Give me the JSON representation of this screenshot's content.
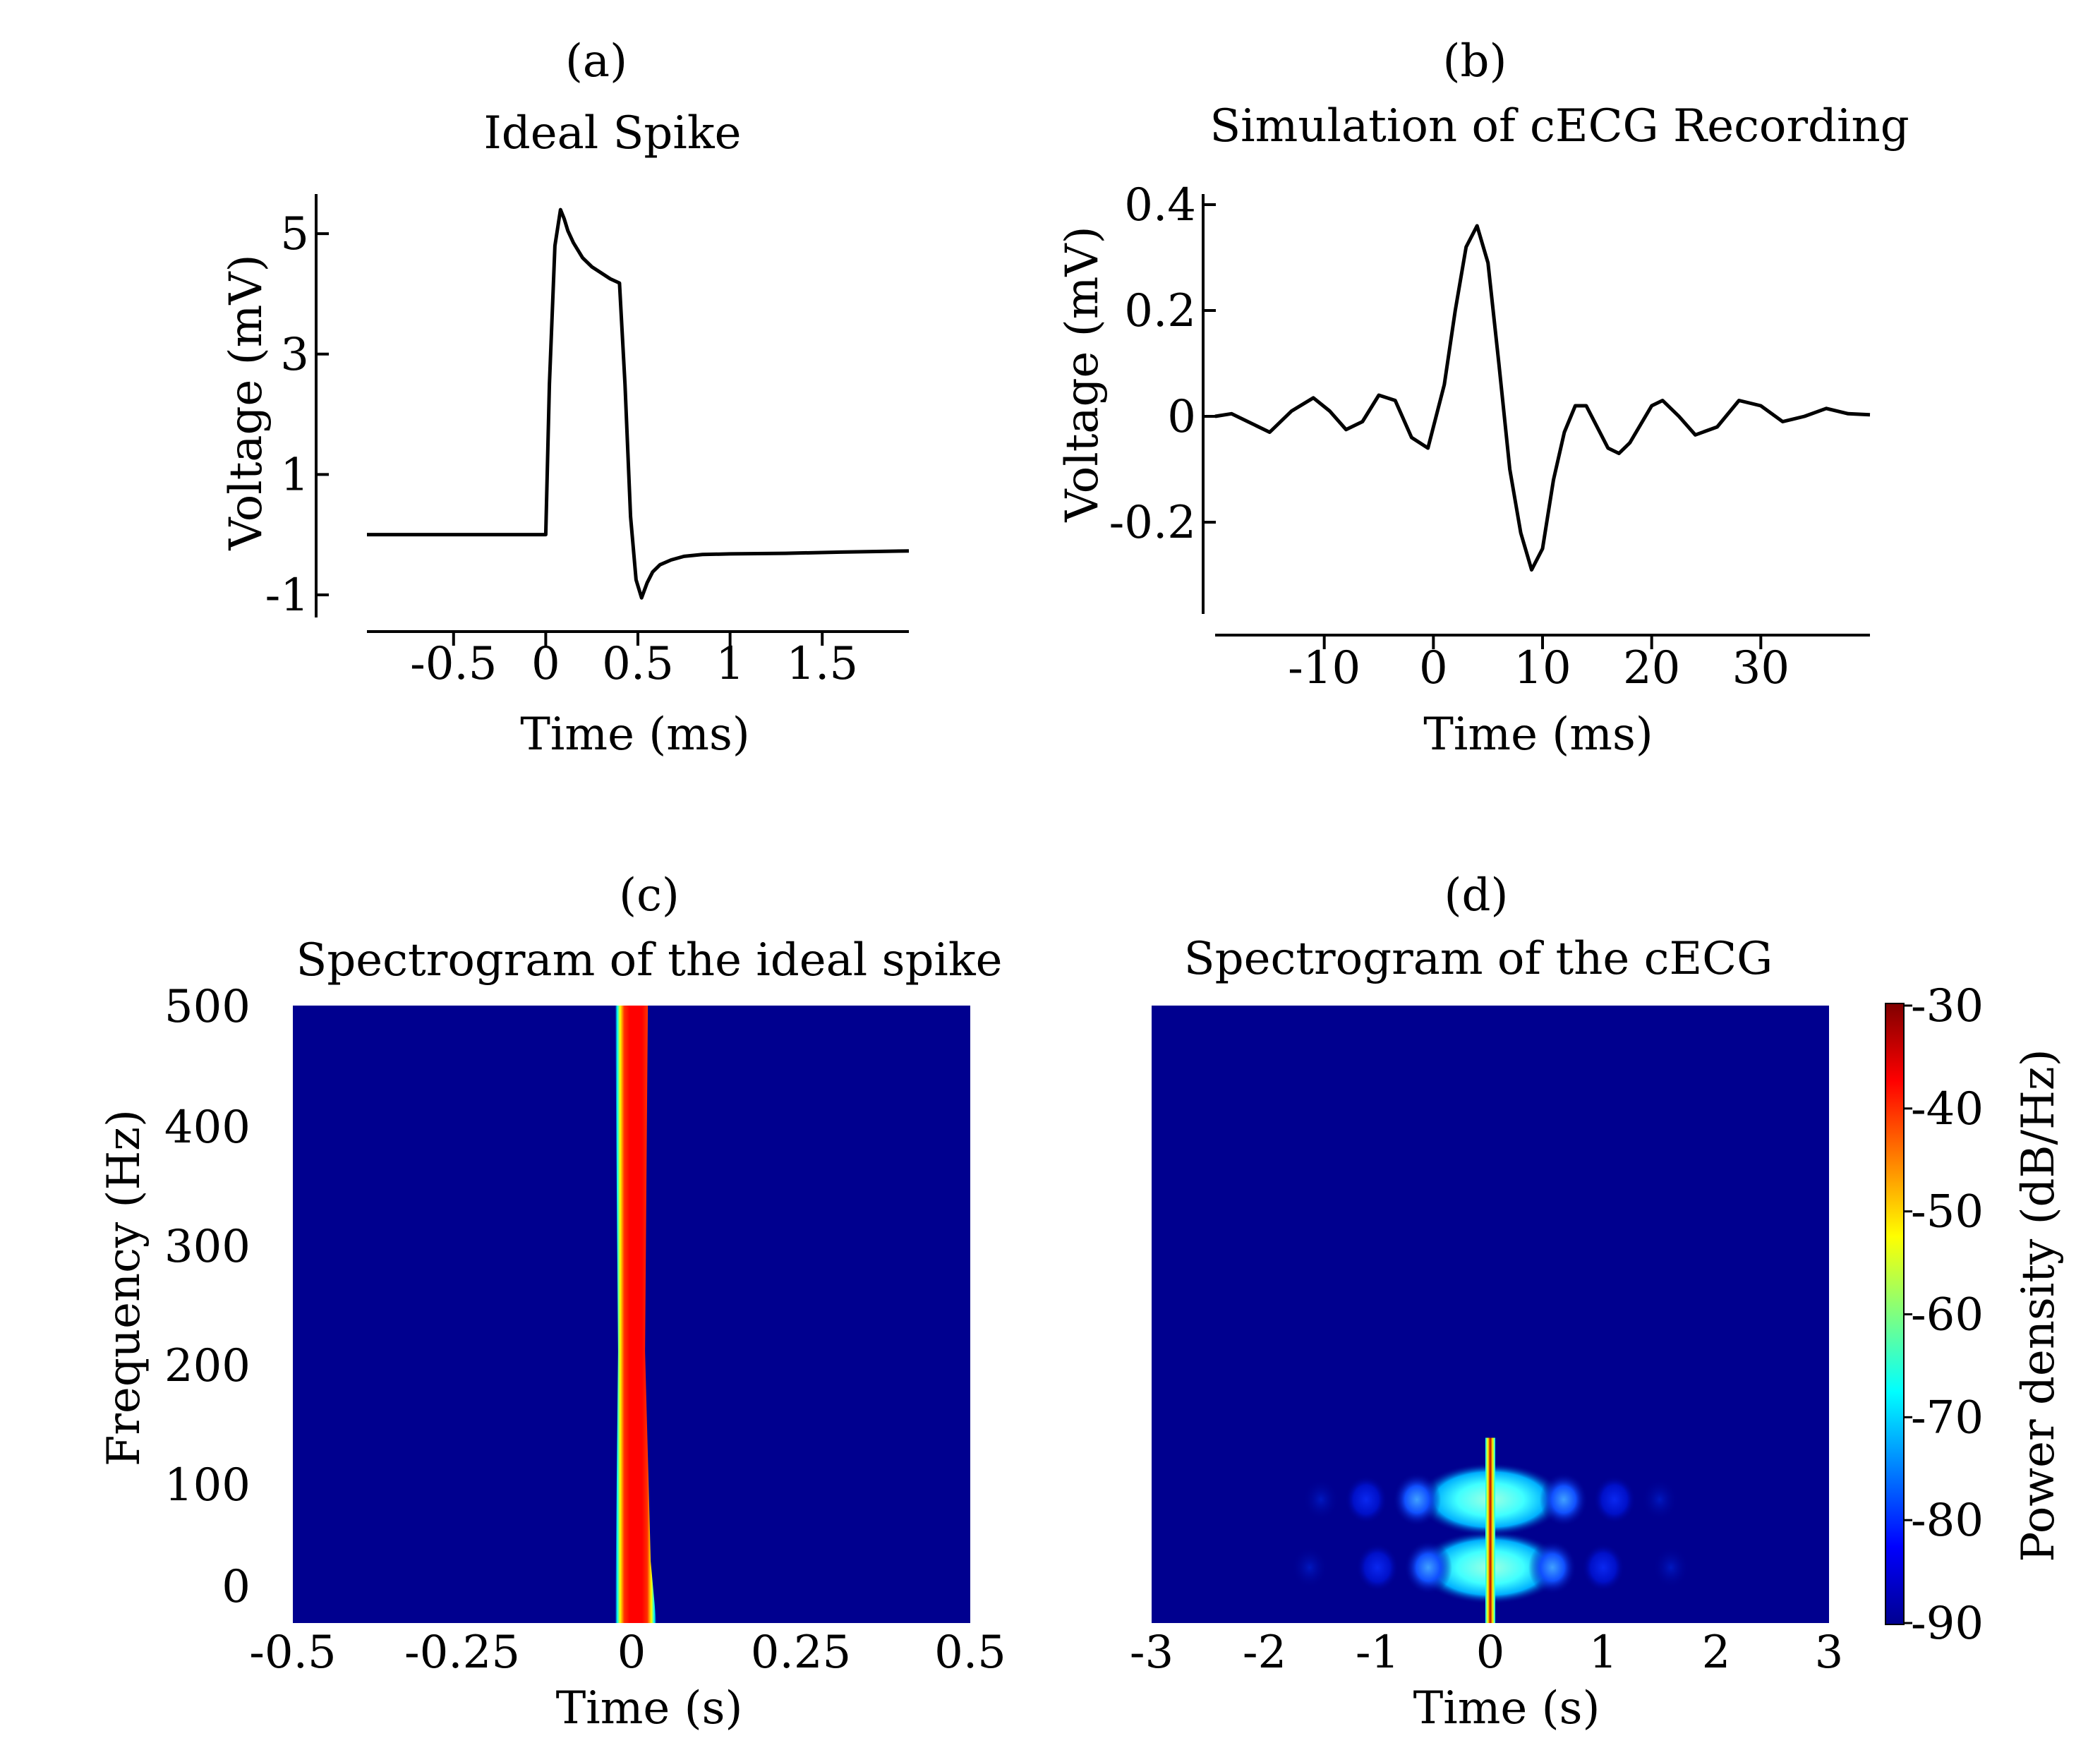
{
  "chart_data": [
    {
      "id": "a",
      "type": "line",
      "panel_label": "(a)",
      "title": "Ideal Spike",
      "xlabel": "Time (ms)",
      "ylabel": "Voltage (mV)",
      "xlim": [
        -0.97,
        1.97
      ],
      "ylim": [
        -1.2,
        5.6
      ],
      "xticks": [
        -0.5,
        0,
        0.5,
        1,
        1.5
      ],
      "xtick_labels": [
        "-0.5",
        "0",
        "0.5",
        "1",
        "1.5"
      ],
      "yticks": [
        -1,
        1,
        3,
        5
      ],
      "ytick_labels": [
        "-1",
        "1",
        "3",
        "5"
      ],
      "x": [
        -0.97,
        -0.6,
        -0.2,
        0.0,
        0.02,
        0.05,
        0.08,
        0.1,
        0.12,
        0.15,
        0.2,
        0.25,
        0.3,
        0.35,
        0.4,
        0.43,
        0.46,
        0.49,
        0.52,
        0.55,
        0.58,
        0.62,
        0.68,
        0.75,
        0.85,
        1.0,
        1.3,
        1.6,
        1.97
      ],
      "y": [
        0.0,
        0.0,
        0.0,
        0.0,
        2.5,
        4.8,
        5.4,
        5.25,
        5.05,
        4.85,
        4.6,
        4.45,
        4.35,
        4.25,
        4.18,
        2.5,
        0.3,
        -0.75,
        -1.05,
        -0.8,
        -0.62,
        -0.5,
        -0.42,
        -0.36,
        -0.33,
        -0.32,
        -0.31,
        -0.29,
        -0.27
      ]
    },
    {
      "id": "b",
      "type": "line",
      "panel_label": "(b)",
      "title": "Simulation of cECG Recording",
      "xlabel": "Time (ms)",
      "ylabel": "Voltage (mV)",
      "xlim": [
        -20,
        40
      ],
      "ylim": [
        -0.36,
        0.42
      ],
      "xticks": [
        -10,
        0,
        10,
        20,
        30
      ],
      "xtick_labels": [
        "-10",
        "0",
        "10",
        "20",
        "30"
      ],
      "yticks": [
        -0.2,
        0,
        0.2,
        0.4
      ],
      "ytick_labels": [
        "-0.2",
        "0",
        "0.2",
        "0.4"
      ],
      "x": [
        -20,
        -18.5,
        -17,
        -15,
        -13,
        -11,
        -9.5,
        -8,
        -6.5,
        -5,
        -3.5,
        -2,
        -0.5,
        1,
        2,
        3,
        4,
        5,
        6,
        7,
        8,
        9,
        10,
        11,
        12,
        13,
        14,
        16,
        17,
        18,
        20,
        21,
        22.5,
        24,
        26,
        28,
        30,
        32,
        34,
        36,
        38,
        40
      ],
      "y": [
        0.0,
        0.005,
        -0.01,
        -0.03,
        0.01,
        0.035,
        0.01,
        -0.025,
        -0.01,
        0.04,
        0.03,
        -0.04,
        -0.06,
        0.06,
        0.2,
        0.32,
        0.36,
        0.29,
        0.1,
        -0.1,
        -0.22,
        -0.29,
        -0.25,
        -0.12,
        -0.03,
        0.02,
        0.02,
        -0.06,
        -0.07,
        -0.05,
        0.02,
        0.03,
        0.0,
        -0.035,
        -0.02,
        0.03,
        0.02,
        -0.01,
        0.0,
        0.015,
        0.005,
        0.003
      ]
    },
    {
      "id": "c",
      "type": "heatmap",
      "panel_label": "(c)",
      "title": "Spectrogram of the ideal spike",
      "xlabel": "Time (s)",
      "ylabel": "Frequency (Hz)",
      "xlim": [
        -0.5,
        0.5
      ],
      "ylim": [
        0,
        500
      ],
      "xticks": [
        -0.5,
        -0.25,
        0,
        0.25,
        0.5
      ],
      "xtick_labels": [
        "-0.5",
        "-0.25",
        "0",
        "0.25",
        "0.5"
      ],
      "yticks": [
        0,
        100,
        200,
        300,
        400,
        500
      ],
      "ytick_labels": [
        "0",
        "100",
        "200",
        "300",
        "400",
        "500"
      ],
      "background_db": -90,
      "features": [
        {
          "kind": "band",
          "t_center": 0.0,
          "half_width_s": 0.022,
          "f_min": 0,
          "f_max": 500,
          "peak_db": -41
        }
      ]
    },
    {
      "id": "d",
      "type": "heatmap",
      "panel_label": "(d)",
      "title": "Spectrogram of the cECG",
      "xlabel": "Time (s)",
      "ylabel": "",
      "xlim": [
        -3,
        3
      ],
      "ylim": [
        0,
        500
      ],
      "xticks": [
        -3,
        -2,
        -1,
        0,
        1,
        2,
        3
      ],
      "xtick_labels": [
        "-3",
        "-2",
        "-1",
        "0",
        "1",
        "2",
        "3"
      ],
      "background_db": -90,
      "features": [
        {
          "kind": "blob",
          "t": 0.0,
          "f": 45,
          "peak_db": -67
        },
        {
          "kind": "blob",
          "t": -0.55,
          "f": 45,
          "peak_db": -79
        },
        {
          "kind": "blob",
          "t": 0.55,
          "f": 45,
          "peak_db": -79
        },
        {
          "kind": "blob",
          "t": -1.0,
          "f": 45,
          "peak_db": -84
        },
        {
          "kind": "blob",
          "t": 1.0,
          "f": 45,
          "peak_db": -84
        },
        {
          "kind": "blob",
          "t": -1.6,
          "f": 45,
          "peak_db": -86
        },
        {
          "kind": "blob",
          "t": 1.6,
          "f": 45,
          "peak_db": -86
        },
        {
          "kind": "blob",
          "t": 0.0,
          "f": 100,
          "peak_db": -68
        },
        {
          "kind": "blob",
          "t": -0.65,
          "f": 100,
          "peak_db": -79
        },
        {
          "kind": "blob",
          "t": 0.65,
          "f": 100,
          "peak_db": -79
        },
        {
          "kind": "blob",
          "t": -1.1,
          "f": 100,
          "peak_db": -84
        },
        {
          "kind": "blob",
          "t": 1.1,
          "f": 100,
          "peak_db": -84
        },
        {
          "kind": "blob",
          "t": -1.5,
          "f": 100,
          "peak_db": -88
        },
        {
          "kind": "blob",
          "t": 1.5,
          "f": 100,
          "peak_db": -88
        },
        {
          "kind": "line",
          "t": 0.0,
          "f_max": 150,
          "peak_db": -33
        }
      ]
    }
  ],
  "colorbar": {
    "label": "Power density (dB/Hz)",
    "min": -90,
    "max": -30,
    "ticks": [
      -30,
      -40,
      -50,
      -60,
      -70,
      -80,
      -90
    ],
    "tick_labels": [
      "-30",
      "-40",
      "-50",
      "-60",
      "-70",
      "-80",
      "-90"
    ],
    "colormap": "jet"
  },
  "colors": {
    "line": "#000000",
    "background_blue": "#00008f",
    "axis": "#000000"
  }
}
